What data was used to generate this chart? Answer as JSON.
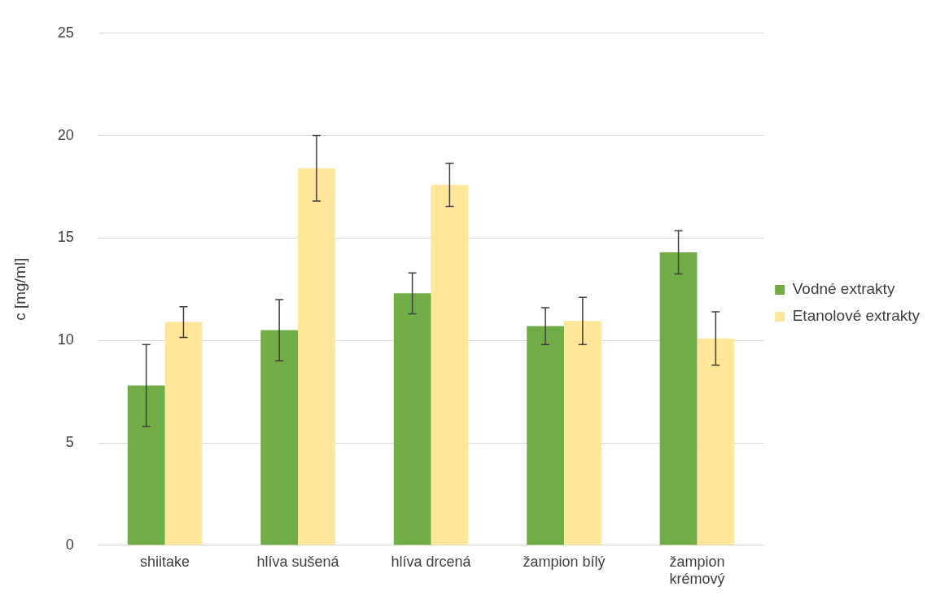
{
  "chart_data": {
    "type": "bar",
    "ylabel": "c [mg/ml]",
    "categories": [
      "shiitake",
      "hlíva sušená",
      "hlíva drcená",
      "žampion bílý",
      "žampion krémový"
    ],
    "series": [
      {
        "name": "Vodné extrakty",
        "color": "#70ad47",
        "values": [
          7.8,
          10.5,
          12.3,
          10.7,
          14.3
        ],
        "errors": [
          2.0,
          1.5,
          1.0,
          0.9,
          1.05
        ]
      },
      {
        "name": "Etanolové extrakty",
        "color": "#ffe699",
        "values": [
          10.9,
          18.4,
          17.6,
          10.95,
          10.1
        ],
        "errors": [
          0.75,
          1.6,
          1.05,
          1.15,
          1.3
        ]
      }
    ],
    "ylim": [
      0,
      25
    ],
    "yticks": [
      0,
      5,
      10,
      15,
      20,
      25
    ],
    "grid": "y",
    "legend": "right"
  }
}
